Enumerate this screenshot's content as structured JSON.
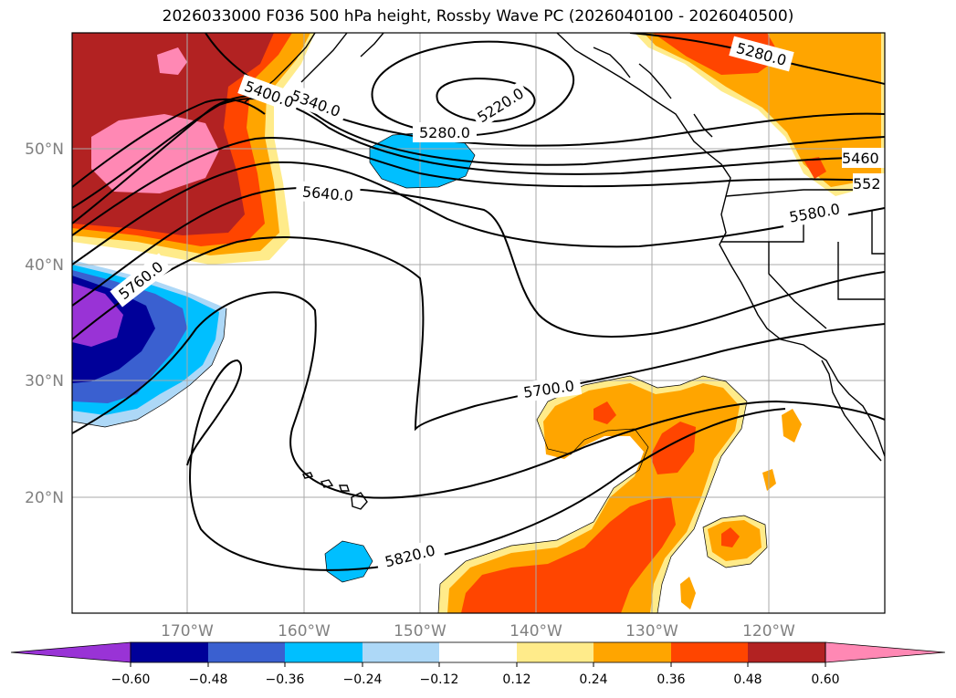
{
  "title": "2026033000 F036 500 hPa height, Rossby Wave PC (2026040100 - 2026040500)",
  "map": {
    "lat_labels": [
      "50°N",
      "40°N",
      "30°N",
      "20°N"
    ],
    "lon_labels": [
      "170°W",
      "160°W",
      "150°W",
      "140°W",
      "130°W",
      "120°W"
    ],
    "contour_labels": [
      "5280.0",
      "5220.0",
      "5280.0",
      "5340.0",
      "5400.0",
      "5460",
      "552",
      "5580.0",
      "5640.0",
      "5700.0",
      "5760.0",
      "5820.0"
    ]
  },
  "colorbar": {
    "colors": [
      "#9933d6",
      "#000099",
      "#3a60d0",
      "#00bfff",
      "#add8f7",
      "#ffffff",
      "#ffeb8a",
      "#ffa500",
      "#ff4500",
      "#b22222",
      "#ff88b4"
    ],
    "tick_labels": [
      "−0.60",
      "−0.48",
      "−0.36",
      "−0.24",
      "−0.12",
      "0.12",
      "0.24",
      "0.36",
      "0.48",
      "0.60"
    ]
  }
}
